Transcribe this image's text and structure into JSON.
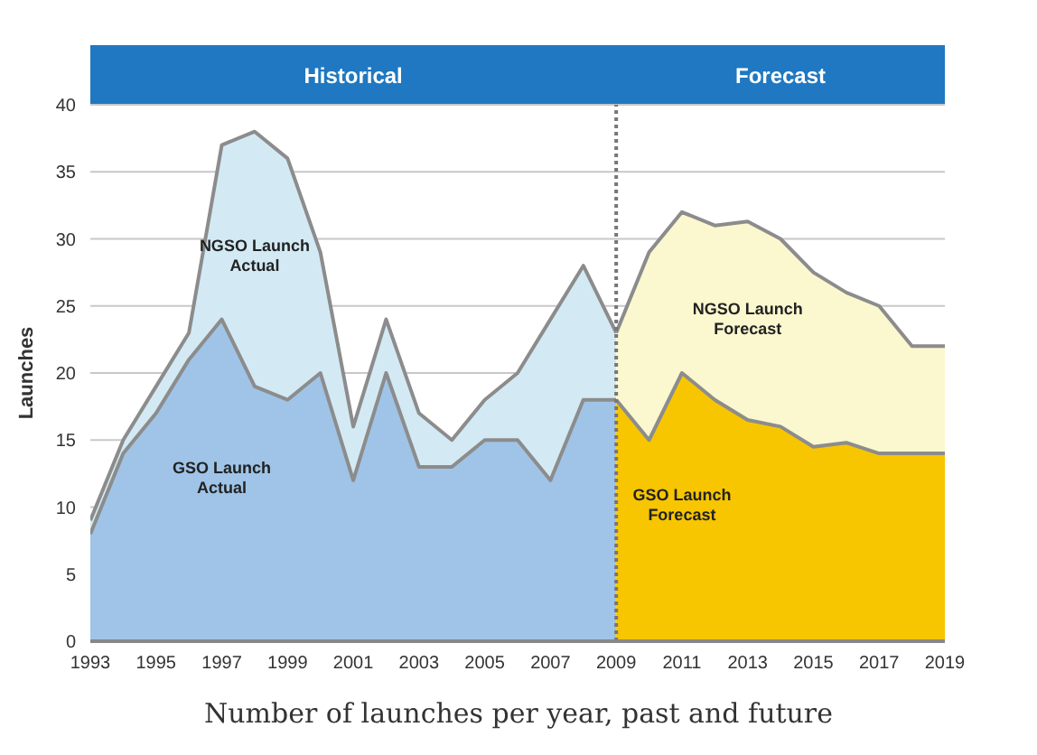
{
  "chart_data": {
    "type": "area",
    "ylabel": "Launches",
    "x": [
      1993,
      1994,
      1995,
      1996,
      1997,
      1998,
      1999,
      2000,
      2001,
      2002,
      2003,
      2004,
      2005,
      2006,
      2007,
      2008,
      2009,
      2010,
      2011,
      2012,
      2013,
      2014,
      2015,
      2016,
      2017,
      2018,
      2019
    ],
    "series": [
      {
        "name": "NGSO Launch Actual",
        "color": "#d3eaf5",
        "values": [
          9,
          15,
          19,
          23,
          37,
          38,
          36,
          29,
          16,
          24,
          17,
          15,
          18,
          20,
          24,
          28,
          23,
          null,
          null,
          null,
          null,
          null,
          null,
          null,
          null,
          null,
          null
        ]
      },
      {
        "name": "GSO Launch Actual",
        "color": "#9fc4e7",
        "values": [
          8,
          14,
          17,
          21,
          24,
          19,
          18,
          20,
          12,
          20,
          13,
          13,
          15,
          15,
          12,
          18,
          18,
          null,
          null,
          null,
          null,
          null,
          null,
          null,
          null,
          null,
          null
        ]
      },
      {
        "name": "NGSO Launch Forecast",
        "color": "#fbf7cf",
        "values": [
          null,
          null,
          null,
          null,
          null,
          null,
          null,
          null,
          null,
          null,
          null,
          null,
          null,
          null,
          null,
          null,
          23,
          29,
          32,
          31,
          31.3,
          30,
          27.5,
          26,
          25,
          22,
          22
        ]
      },
      {
        "name": "GSO Launch Forecast",
        "color": "#f7c600",
        "values": [
          null,
          null,
          null,
          null,
          null,
          null,
          null,
          null,
          null,
          null,
          null,
          null,
          null,
          null,
          null,
          null,
          18,
          15,
          20,
          18,
          16.5,
          16,
          14.5,
          14.8,
          14,
          14,
          14
        ]
      }
    ],
    "xlim": [
      1993,
      2019
    ],
    "xticks": [
      1993,
      1995,
      1997,
      1999,
      2001,
      2003,
      2005,
      2007,
      2009,
      2011,
      2013,
      2015,
      2017,
      2019
    ],
    "ylim": [
      0,
      40
    ],
    "yticks": [
      0,
      5,
      10,
      15,
      20,
      25,
      30,
      35,
      40
    ],
    "grid": "y",
    "legend": false,
    "ref_lines": [
      {
        "axis": "x",
        "value": 2009,
        "color": "#777777",
        "line_style": "dotted"
      }
    ],
    "annotations": [
      "Historical",
      "Forecast",
      "Number of launches per year, past and future"
    ]
  }
}
